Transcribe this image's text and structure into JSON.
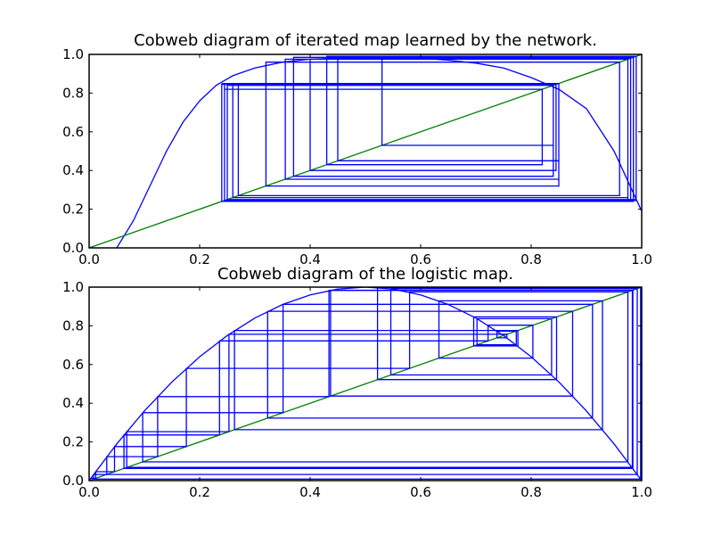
{
  "chart_data": [
    {
      "type": "line",
      "title": "Cobweb diagram of iterated map learned by the network.",
      "xlim": [
        0.0,
        1.0
      ],
      "ylim": [
        0.0,
        1.0
      ],
      "xticks": [
        "0.0",
        "0.2",
        "0.4",
        "0.6",
        "0.8",
        "1.0"
      ],
      "yticks": [
        "0.0",
        "0.2",
        "0.4",
        "0.6",
        "0.8",
        "1.0"
      ],
      "grid": false,
      "colors": {
        "map": "#0000ff",
        "identity": "#008000",
        "cobweb": "#0000ff"
      },
      "series": [
        {
          "kind": "map",
          "x": [
            0.05,
            0.08,
            0.11,
            0.14,
            0.17,
            0.2,
            0.23,
            0.26,
            0.3,
            0.35,
            0.4,
            0.45,
            0.5,
            0.55,
            0.6,
            0.65,
            0.7,
            0.75,
            0.8,
            0.85,
            0.9,
            0.95,
            1.0
          ],
          "y": [
            0.0,
            0.14,
            0.32,
            0.5,
            0.65,
            0.76,
            0.84,
            0.89,
            0.93,
            0.96,
            0.975,
            0.98,
            0.985,
            0.985,
            0.98,
            0.97,
            0.955,
            0.93,
            0.88,
            0.82,
            0.72,
            0.5,
            0.19
          ]
        },
        {
          "kind": "identity",
          "x": [
            0.0,
            1.0
          ],
          "y": [
            0.0,
            1.0
          ]
        },
        {
          "kind": "cobweb",
          "x": [
            0.24,
            0.85,
            0.355,
            0.975,
            0.245,
            0.82,
            0.43,
            0.99,
            0.25,
            0.85,
            0.32,
            0.96,
            0.27,
            0.84,
            0.37,
            0.985,
            0.24,
            0.845,
            0.4,
            0.975,
            0.26,
            0.84,
            0.53,
            0.99,
            0.245,
            0.85,
            0.45,
            0.98,
            0.25,
            0.84
          ],
          "y": [
            0.85,
            0.355,
            0.975,
            0.245,
            0.82,
            0.43,
            0.99,
            0.25,
            0.85,
            0.32,
            0.96,
            0.27,
            0.84,
            0.37,
            0.985,
            0.24,
            0.845,
            0.4,
            0.975,
            0.26,
            0.84,
            0.53,
            0.99,
            0.245,
            0.85,
            0.45,
            0.98,
            0.25,
            0.84,
            0.4
          ]
        }
      ]
    },
    {
      "type": "line",
      "title": "Cobweb diagram of the logistic map.",
      "xlim": [
        0.0,
        1.0
      ],
      "ylim": [
        0.0,
        1.0
      ],
      "xticks": [
        "0.0",
        "0.2",
        "0.4",
        "0.6",
        "0.8",
        "1.0"
      ],
      "yticks": [
        "0.0",
        "0.2",
        "0.4",
        "0.6",
        "0.8",
        "1.0"
      ],
      "grid": false,
      "colors": {
        "map": "#0000ff",
        "identity": "#008000",
        "cobweb": "#0000ff"
      },
      "map_function": "y = 4x(1 - x)",
      "series": [
        {
          "kind": "map",
          "x": [
            0.0,
            0.05,
            0.1,
            0.15,
            0.2,
            0.25,
            0.3,
            0.35,
            0.4,
            0.45,
            0.5,
            0.55,
            0.6,
            0.65,
            0.7,
            0.75,
            0.8,
            0.85,
            0.9,
            0.95,
            1.0
          ],
          "y": [
            0.0,
            0.19,
            0.36,
            0.51,
            0.64,
            0.75,
            0.84,
            0.91,
            0.96,
            0.99,
            1.0,
            0.99,
            0.96,
            0.91,
            0.84,
            0.75,
            0.64,
            0.51,
            0.36,
            0.19,
            0.0
          ]
        },
        {
          "kind": "identity",
          "x": [
            0.0,
            1.0
          ],
          "y": [
            0.0,
            1.0
          ]
        },
        {
          "kind": "cobweb",
          "x": [
            0.003,
            0.012,
            0.046,
            0.176,
            0.58,
            0.975,
            0.097,
            0.351,
            0.911,
            0.323,
            0.875,
            0.437,
            0.984,
            0.063,
            0.236,
            0.722,
            0.803,
            0.633,
            0.929,
            0.263,
            0.776,
            0.696,
            0.846,
            0.522,
            0.998,
            0.008,
            0.032,
            0.124,
            0.434,
            0.983,
            0.068,
            0.253,
            0.756,
            0.738,
            0.773,
            0.702,
            0.837,
            0.546,
            0.992,
            0.032,
            0.124,
            0.434,
            0.983
          ],
          "y": [
            0.012,
            0.046,
            0.176,
            0.58,
            0.975,
            0.097,
            0.351,
            0.911,
            0.323,
            0.875,
            0.437,
            0.984,
            0.063,
            0.236,
            0.722,
            0.803,
            0.633,
            0.929,
            0.263,
            0.776,
            0.696,
            0.846,
            0.522,
            0.998,
            0.008,
            0.032,
            0.124,
            0.434,
            0.983,
            0.068,
            0.253,
            0.756,
            0.738,
            0.773,
            0.702,
            0.837,
            0.546,
            0.992,
            0.032,
            0.124,
            0.434,
            0.983,
            0.068
          ]
        }
      ]
    }
  ]
}
